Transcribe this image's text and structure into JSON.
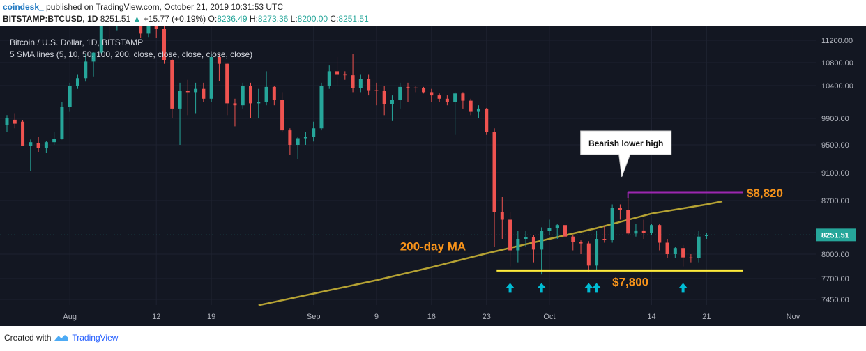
{
  "header": {
    "brand": "coindesk_",
    "published": "published on TradingView.com, October 21, 2019 10:31:53 UTC",
    "symbol": "BITSTAMP:BTCUSD, 1D",
    "last": "8251.51",
    "change": "+15.77 (+0.19%)",
    "o_label": "O:",
    "o": "8236.49",
    "h_label": "H:",
    "h": "8273.36",
    "l_label": "L:",
    "l": "8200.00",
    "c_label": "C:",
    "c": "8251.51"
  },
  "legend": {
    "line1": "Bitcoin / U.S. Dollar, 1D, BITSTAMP",
    "line2": "5 SMA lines (5, 10, 50, 100, 200, close, close, close, close, close)"
  },
  "footer": {
    "created_with": "Created with",
    "brand": "TradingView"
  },
  "colors": {
    "background": "#131722",
    "up": "#26a69a",
    "down": "#ef5350",
    "ma": "#b5a233",
    "support": "#ffeb3b",
    "resistance": "#9c27b0",
    "label_orange": "#f7931a",
    "arrow": "#00bcd4",
    "last_price_bg": "#26a69a"
  },
  "chart_data": {
    "type": "candlestick",
    "yaxis": {
      "ticks": [
        11200,
        10800,
        10400,
        9900,
        9500,
        9100,
        8700,
        8000,
        7700,
        7450
      ],
      "tick_labels": [
        "11200.00",
        "10800.00",
        "10400.00",
        "9900.00",
        "9500.00",
        "9100.00",
        "8700.00",
        "8000.00",
        "7700.00",
        "7450.00"
      ],
      "ylim": [
        7380,
        11560
      ]
    },
    "xaxis": {
      "labels": [
        {
          "text": "Aug",
          "date": "2019-08-01"
        },
        {
          "text": "12",
          "date": "2019-08-12"
        },
        {
          "text": "19",
          "date": "2019-08-19"
        },
        {
          "text": "Sep",
          "date": "2019-09-01"
        },
        {
          "text": "9",
          "date": "2019-09-09"
        },
        {
          "text": "16",
          "date": "2019-09-16"
        },
        {
          "text": "23",
          "date": "2019-09-23"
        },
        {
          "text": "Oct",
          "date": "2019-10-01"
        },
        {
          "text": "14",
          "date": "2019-10-14"
        },
        {
          "text": "21",
          "date": "2019-10-21"
        },
        {
          "text": "Nov",
          "date": "2019-11-01"
        }
      ],
      "xlim": [
        "2019-07-24",
        "2019-11-03"
      ]
    },
    "last_price_label": "8251.51",
    "last_price": 8251.51,
    "candles": [
      {
        "d": "2019-07-24",
        "o": 9800,
        "h": 9950,
        "l": 9700,
        "c": 9900
      },
      {
        "d": "2019-07-25",
        "o": 9880,
        "h": 9980,
        "l": 9750,
        "c": 9820
      },
      {
        "d": "2019-07-26",
        "o": 9850,
        "h": 9870,
        "l": 9500,
        "c": 9480
      },
      {
        "d": "2019-07-27",
        "o": 9480,
        "h": 9580,
        "l": 9120,
        "c": 9540
      },
      {
        "d": "2019-07-28",
        "o": 9530,
        "h": 9620,
        "l": 9400,
        "c": 9460
      },
      {
        "d": "2019-07-29",
        "o": 9460,
        "h": 9560,
        "l": 9380,
        "c": 9540
      },
      {
        "d": "2019-07-30",
        "o": 9540,
        "h": 9700,
        "l": 9500,
        "c": 9590
      },
      {
        "d": "2019-07-31",
        "o": 9590,
        "h": 10150,
        "l": 9580,
        "c": 10080
      },
      {
        "d": "2019-08-01",
        "o": 10080,
        "h": 10450,
        "l": 10000,
        "c": 10400
      },
      {
        "d": "2019-08-02",
        "o": 10400,
        "h": 10600,
        "l": 10350,
        "c": 10530
      },
      {
        "d": "2019-08-03",
        "o": 10530,
        "h": 10950,
        "l": 10470,
        "c": 10820
      },
      {
        "d": "2019-08-04",
        "o": 10820,
        "h": 11000,
        "l": 10560,
        "c": 10980
      },
      {
        "d": "2019-08-05",
        "o": 10980,
        "h": 11900,
        "l": 10960,
        "c": 11800
      },
      {
        "d": "2019-08-06",
        "o": 11800,
        "h": 12300,
        "l": 11200,
        "c": 11470
      },
      {
        "d": "2019-08-07",
        "o": 11470,
        "h": 12080,
        "l": 11380,
        "c": 11970
      },
      {
        "d": "2019-08-08",
        "o": 11970,
        "h": 12050,
        "l": 11550,
        "c": 11990
      },
      {
        "d": "2019-08-09",
        "o": 11990,
        "h": 12000,
        "l": 11600,
        "c": 11850
      },
      {
        "d": "2019-08-10",
        "o": 11850,
        "h": 11900,
        "l": 11250,
        "c": 11320
      },
      {
        "d": "2019-08-11",
        "o": 11320,
        "h": 11570,
        "l": 11260,
        "c": 11500
      },
      {
        "d": "2019-08-12",
        "o": 11500,
        "h": 11550,
        "l": 11250,
        "c": 11400
      },
      {
        "d": "2019-08-13",
        "o": 11400,
        "h": 11450,
        "l": 10780,
        "c": 10850
      },
      {
        "d": "2019-08-14",
        "o": 10850,
        "h": 10880,
        "l": 9900,
        "c": 10050
      },
      {
        "d": "2019-08-15",
        "o": 10050,
        "h": 10450,
        "l": 9500,
        "c": 10320
      },
      {
        "d": "2019-08-16",
        "o": 10320,
        "h": 10500,
        "l": 9950,
        "c": 10300
      },
      {
        "d": "2019-08-17",
        "o": 10300,
        "h": 10450,
        "l": 9980,
        "c": 10350
      },
      {
        "d": "2019-08-18",
        "o": 10350,
        "h": 10450,
        "l": 10150,
        "c": 10200
      },
      {
        "d": "2019-08-19",
        "o": 10200,
        "h": 10950,
        "l": 10150,
        "c": 10900
      },
      {
        "d": "2019-08-20",
        "o": 10900,
        "h": 10950,
        "l": 10480,
        "c": 10780
      },
      {
        "d": "2019-08-21",
        "o": 10780,
        "h": 10800,
        "l": 9950,
        "c": 10130
      },
      {
        "d": "2019-08-22",
        "o": 10130,
        "h": 10200,
        "l": 9780,
        "c": 10100
      },
      {
        "d": "2019-08-23",
        "o": 10100,
        "h": 10450,
        "l": 10050,
        "c": 10400
      },
      {
        "d": "2019-08-24",
        "o": 10400,
        "h": 10450,
        "l": 9900,
        "c": 10130
      },
      {
        "d": "2019-08-25",
        "o": 10130,
        "h": 10350,
        "l": 9900,
        "c": 10150
      },
      {
        "d": "2019-08-26",
        "o": 10150,
        "h": 10650,
        "l": 10100,
        "c": 10380
      },
      {
        "d": "2019-08-27",
        "o": 10380,
        "h": 10400,
        "l": 10100,
        "c": 10180
      },
      {
        "d": "2019-08-28",
        "o": 10180,
        "h": 10300,
        "l": 9700,
        "c": 9720
      },
      {
        "d": "2019-08-29",
        "o": 9720,
        "h": 9750,
        "l": 9350,
        "c": 9500
      },
      {
        "d": "2019-08-30",
        "o": 9500,
        "h": 9620,
        "l": 9300,
        "c": 9600
      },
      {
        "d": "2019-08-31",
        "o": 9600,
        "h": 9700,
        "l": 9500,
        "c": 9620
      },
      {
        "d": "2019-09-01",
        "o": 9620,
        "h": 9850,
        "l": 9550,
        "c": 9750
      },
      {
        "d": "2019-09-02",
        "o": 9750,
        "h": 10450,
        "l": 9720,
        "c": 10400
      },
      {
        "d": "2019-09-03",
        "o": 10400,
        "h": 10750,
        "l": 10350,
        "c": 10650
      },
      {
        "d": "2019-09-04",
        "o": 10650,
        "h": 10900,
        "l": 10400,
        "c": 10600
      },
      {
        "d": "2019-09-05",
        "o": 10600,
        "h": 10650,
        "l": 10500,
        "c": 10580
      },
      {
        "d": "2019-09-06",
        "o": 10580,
        "h": 10950,
        "l": 10300,
        "c": 10360
      },
      {
        "d": "2019-09-07",
        "o": 10360,
        "h": 10600,
        "l": 10300,
        "c": 10520
      },
      {
        "d": "2019-09-08",
        "o": 10520,
        "h": 10600,
        "l": 10250,
        "c": 10330
      },
      {
        "d": "2019-09-09",
        "o": 10330,
        "h": 10450,
        "l": 10100,
        "c": 10320
      },
      {
        "d": "2019-09-10",
        "o": 10320,
        "h": 10400,
        "l": 9950,
        "c": 10120
      },
      {
        "d": "2019-09-11",
        "o": 10120,
        "h": 10250,
        "l": 9860,
        "c": 10180
      },
      {
        "d": "2019-09-12",
        "o": 10180,
        "h": 10450,
        "l": 10050,
        "c": 10380
      },
      {
        "d": "2019-09-13",
        "o": 10380,
        "h": 10450,
        "l": 10150,
        "c": 10370
      },
      {
        "d": "2019-09-14",
        "o": 10370,
        "h": 10400,
        "l": 10300,
        "c": 10360
      },
      {
        "d": "2019-09-15",
        "o": 10360,
        "h": 10380,
        "l": 10280,
        "c": 10300
      },
      {
        "d": "2019-09-16",
        "o": 10300,
        "h": 10350,
        "l": 10150,
        "c": 10250
      },
      {
        "d": "2019-09-17",
        "o": 10250,
        "h": 10280,
        "l": 10150,
        "c": 10200
      },
      {
        "d": "2019-09-18",
        "o": 10200,
        "h": 10250,
        "l": 10100,
        "c": 10150
      },
      {
        "d": "2019-09-19",
        "o": 10150,
        "h": 10300,
        "l": 9650,
        "c": 10280
      },
      {
        "d": "2019-09-20",
        "o": 10280,
        "h": 10300,
        "l": 10050,
        "c": 10170
      },
      {
        "d": "2019-09-21",
        "o": 10170,
        "h": 10200,
        "l": 9950,
        "c": 10000
      },
      {
        "d": "2019-09-22",
        "o": 10000,
        "h": 10100,
        "l": 9900,
        "c": 10050
      },
      {
        "d": "2019-09-23",
        "o": 10050,
        "h": 10060,
        "l": 9650,
        "c": 9700
      },
      {
        "d": "2019-09-24",
        "o": 9700,
        "h": 9750,
        "l": 8100,
        "c": 8550
      },
      {
        "d": "2019-09-25",
        "o": 8550,
        "h": 8750,
        "l": 8200,
        "c": 8450
      },
      {
        "d": "2019-09-26",
        "o": 8450,
        "h": 8550,
        "l": 7850,
        "c": 8050
      },
      {
        "d": "2019-09-27",
        "o": 8050,
        "h": 8300,
        "l": 7900,
        "c": 8200
      },
      {
        "d": "2019-09-28",
        "o": 8200,
        "h": 8300,
        "l": 8100,
        "c": 8220
      },
      {
        "d": "2019-09-29",
        "o": 8220,
        "h": 8250,
        "l": 7900,
        "c": 8060
      },
      {
        "d": "2019-09-30",
        "o": 8060,
        "h": 8350,
        "l": 7750,
        "c": 8300
      },
      {
        "d": "2019-10-01",
        "o": 8300,
        "h": 8450,
        "l": 8250,
        "c": 8340
      },
      {
        "d": "2019-10-02",
        "o": 8340,
        "h": 8400,
        "l": 8200,
        "c": 8380
      },
      {
        "d": "2019-10-03",
        "o": 8380,
        "h": 8400,
        "l": 8050,
        "c": 8230
      },
      {
        "d": "2019-10-04",
        "o": 8230,
        "h": 8250,
        "l": 8050,
        "c": 8160
      },
      {
        "d": "2019-10-05",
        "o": 8160,
        "h": 8180,
        "l": 8000,
        "c": 8140
      },
      {
        "d": "2019-10-06",
        "o": 8140,
        "h": 8170,
        "l": 7780,
        "c": 7860
      },
      {
        "d": "2019-10-07",
        "o": 7860,
        "h": 8310,
        "l": 7790,
        "c": 8200
      },
      {
        "d": "2019-10-08",
        "o": 8200,
        "h": 8370,
        "l": 8150,
        "c": 8190
      },
      {
        "d": "2019-10-09",
        "o": 8190,
        "h": 8650,
        "l": 8150,
        "c": 8600
      },
      {
        "d": "2019-10-10",
        "o": 8600,
        "h": 8650,
        "l": 8450,
        "c": 8580
      },
      {
        "d": "2019-10-11",
        "o": 8580,
        "h": 8820,
        "l": 8250,
        "c": 8270
      },
      {
        "d": "2019-10-12",
        "o": 8270,
        "h": 8400,
        "l": 8230,
        "c": 8310
      },
      {
        "d": "2019-10-13",
        "o": 8310,
        "h": 8450,
        "l": 8200,
        "c": 8280
      },
      {
        "d": "2019-10-14",
        "o": 8280,
        "h": 8400,
        "l": 8250,
        "c": 8380
      },
      {
        "d": "2019-10-15",
        "o": 8380,
        "h": 8400,
        "l": 8050,
        "c": 8150
      },
      {
        "d": "2019-10-16",
        "o": 8150,
        "h": 8200,
        "l": 7950,
        "c": 8000
      },
      {
        "d": "2019-10-17",
        "o": 8000,
        "h": 8100,
        "l": 7950,
        "c": 8080
      },
      {
        "d": "2019-10-18",
        "o": 8080,
        "h": 8120,
        "l": 7850,
        "c": 7960
      },
      {
        "d": "2019-10-19",
        "o": 7960,
        "h": 8000,
        "l": 7900,
        "c": 7950
      },
      {
        "d": "2019-10-20",
        "o": 7950,
        "h": 8300,
        "l": 7900,
        "c": 8230
      },
      {
        "d": "2019-10-21",
        "o": 8236.49,
        "h": 8273.36,
        "l": 8200.0,
        "c": 8251.51
      }
    ],
    "ma200": [
      {
        "d": "2019-08-25",
        "v": 7380
      },
      {
        "d": "2019-09-01",
        "v": 7520
      },
      {
        "d": "2019-09-09",
        "v": 7680
      },
      {
        "d": "2019-09-16",
        "v": 7840
      },
      {
        "d": "2019-09-23",
        "v": 8010
      },
      {
        "d": "2019-10-01",
        "v": 8200
      },
      {
        "d": "2019-10-07",
        "v": 8340
      },
      {
        "d": "2019-10-14",
        "v": 8530
      },
      {
        "d": "2019-10-21",
        "v": 8650
      },
      {
        "d": "2019-10-23",
        "v": 8690
      }
    ],
    "support": {
      "value": 7800,
      "label": "$7,800",
      "from": "2019-09-25",
      "to": "2019-10-23"
    },
    "resistance": {
      "value": 8820,
      "label": "$8,820",
      "from": "2019-10-11",
      "to": "2019-10-23"
    },
    "ma_label": "200-day MA",
    "callout": {
      "text": "Bearish lower high",
      "date": "2019-10-11"
    },
    "arrows": [
      "2019-09-26",
      "2019-09-30",
      "2019-10-06",
      "2019-10-07",
      "2019-10-18"
    ]
  }
}
